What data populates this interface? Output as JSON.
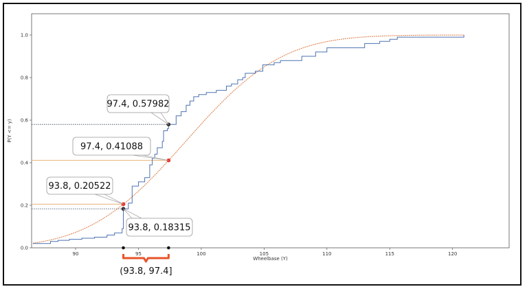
{
  "chart_data": {
    "type": "line",
    "xlabel": "Wheelbase (Y)",
    "ylabel": "P(Y <= y)",
    "xlim": [
      86.5,
      124.5
    ],
    "ylim": [
      0,
      1.1
    ],
    "xticks": [
      "90",
      "95",
      "100",
      "105",
      "110",
      "115",
      "120"
    ],
    "yticks": [
      "0.0",
      "0.2",
      "0.4",
      "0.6",
      "0.8",
      "1.0"
    ],
    "grid": false,
    "series": [
      {
        "kind": "step",
        "color": "#4c72b0",
        "x": [
          86.6,
          88.0,
          88.6,
          89.5,
          90.5,
          91.5,
          92.5,
          93.1,
          93.7,
          93.8,
          94.2,
          94.5,
          95.0,
          95.5,
          95.9,
          96.1,
          96.3,
          96.5,
          96.9,
          97.0,
          97.3,
          97.4,
          98.0,
          98.4,
          98.8,
          99.1,
          99.4,
          99.8,
          100.4,
          101.2,
          102.0,
          102.4,
          102.9,
          103.3,
          103.5,
          104.3,
          104.9,
          105.8,
          106.3,
          107.9,
          108.0,
          109.1,
          110.0,
          112.0,
          113.0,
          114.2,
          115.0,
          115.6,
          120.9
        ],
        "y": [
          0.02,
          0.03,
          0.035,
          0.04,
          0.045,
          0.05,
          0.06,
          0.07,
          0.09,
          0.18315,
          0.21,
          0.29,
          0.31,
          0.33,
          0.39,
          0.42,
          0.44,
          0.47,
          0.5,
          0.55,
          0.56,
          0.57982,
          0.62,
          0.64,
          0.67,
          0.69,
          0.71,
          0.72,
          0.73,
          0.74,
          0.76,
          0.77,
          0.79,
          0.8,
          0.82,
          0.83,
          0.86,
          0.87,
          0.88,
          0.88,
          0.9,
          0.92,
          0.94,
          0.94,
          0.96,
          0.97,
          0.98,
          0.99,
          1.0
        ]
      },
      {
        "kind": "smooth",
        "color": "#dd8452",
        "mean": 98.76,
        "std": 6.02,
        "x_start": 86.6,
        "x_end": 120.9
      }
    ],
    "points": [
      {
        "x": 93.8,
        "y": 0.20522,
        "label": "93.8, 0.20522",
        "color": "#e8342a",
        "series": "smooth"
      },
      {
        "x": 97.4,
        "y": 0.41088,
        "label": "97.4, 0.41088",
        "color": "#e8342a",
        "series": "smooth"
      },
      {
        "x": 97.4,
        "y": 0.57982,
        "label": "97.4, 0.57982",
        "color": "#333333",
        "series": "step"
      },
      {
        "x": 93.8,
        "y": 0.18315,
        "label": "93.8, 0.18315",
        "color": "#333333",
        "series": "step"
      }
    ],
    "interval": {
      "label": "(93.8, 97.4]",
      "start": 93.8,
      "end": 97.4,
      "bracket_color": "#e8542a"
    }
  }
}
